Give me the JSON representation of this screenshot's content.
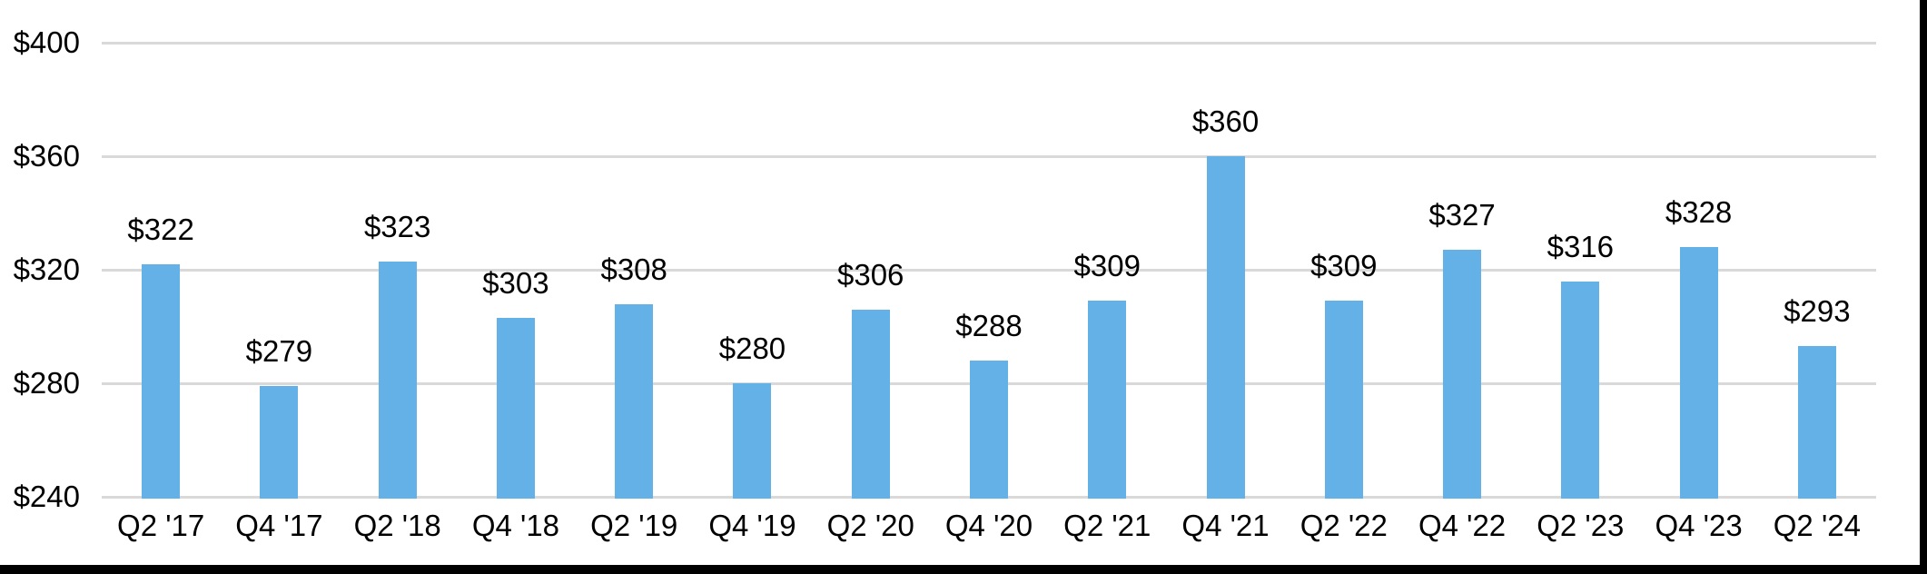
{
  "chart_data": {
    "type": "bar",
    "title": "",
    "xlabel": "",
    "ylabel": "",
    "categories": [
      "Q2 '17",
      "Q4 '17",
      "Q2 '18",
      "Q4 '18",
      "Q2 '19",
      "Q4 '19",
      "Q2 '20",
      "Q4 '20",
      "Q2 '21",
      "Q4 '21",
      "Q2 '22",
      "Q4 '22",
      "Q2 '23",
      "Q4 '23",
      "Q2 '24"
    ],
    "values": [
      322,
      279,
      323,
      303,
      308,
      280,
      306,
      288,
      309,
      360,
      309,
      327,
      316,
      328,
      293
    ],
    "value_labels": [
      "$322",
      "$279",
      "$323",
      "$303",
      "$308",
      "$280",
      "$306",
      "$288",
      "$309",
      "$360",
      "$309",
      "$327",
      "$316",
      "$328",
      "$293"
    ],
    "ylim": [
      240,
      400
    ],
    "yticks": [
      400,
      360,
      320,
      280,
      240
    ],
    "ytick_labels": [
      "$400",
      "$360",
      "$320",
      "$280",
      "$240"
    ],
    "grid": true,
    "legend_position": "none",
    "bar_color": "#63B1E6",
    "gridline_color": "#D9D9D9",
    "text_color": "#000000",
    "edge_border_color": "#000000"
  }
}
